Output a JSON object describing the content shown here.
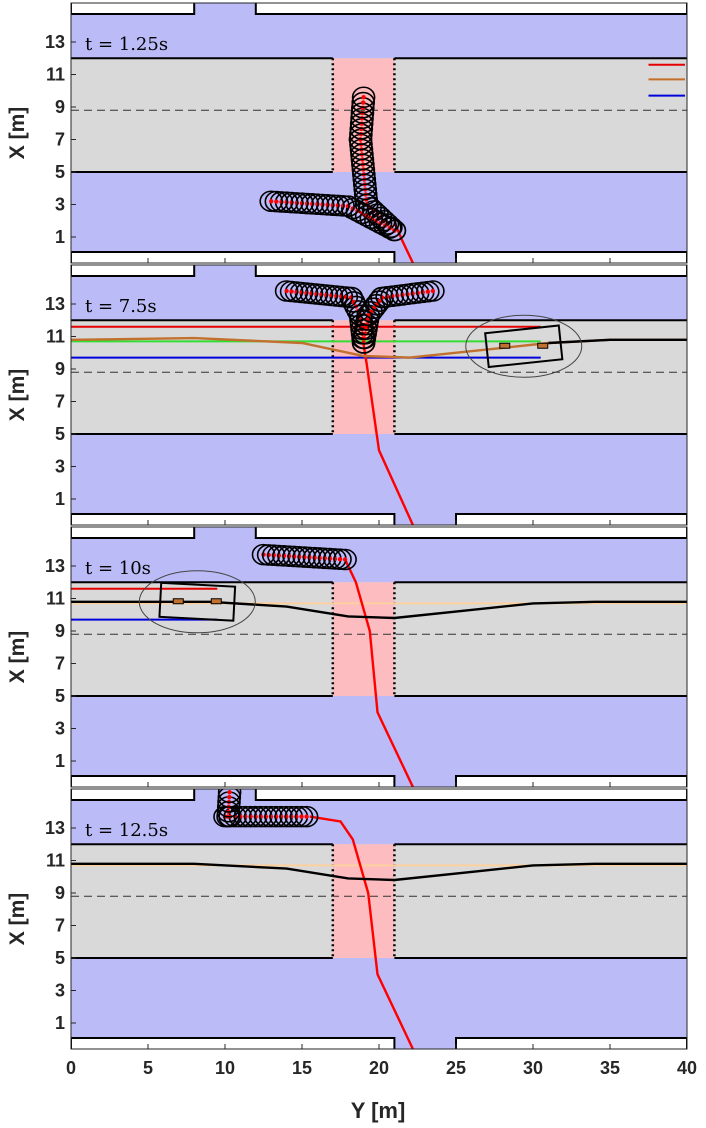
{
  "chart_data": [
    {
      "type": "line",
      "time_label": "t = 1.25s",
      "ylabel": "X [m]",
      "x_ticks": [
        0,
        5,
        10,
        15,
        20,
        25,
        30,
        35,
        40
      ],
      "y_ticks": [
        1,
        3,
        5,
        7,
        9,
        11,
        13
      ],
      "xlim": [
        0,
        40
      ],
      "ylim": [
        -0.6,
        15.4
      ],
      "ref_lines": [
        "red",
        "orange",
        "blue"
      ],
      "series": [
        {
          "values": [
            [
              22.2,
              -0.6
            ],
            [
              21.5,
              0.8
            ],
            [
              21.0,
              1.9
            ]
          ]
        },
        {
          "values": [
            [
              21.0,
              1.4
            ],
            [
              19.2,
              3.0
            ],
            [
              18.8,
              7.0
            ],
            [
              19.0,
              9.6
            ]
          ]
        },
        {
          "values": [
            [
              21.0,
              1.4
            ],
            [
              18.0,
              2.9
            ],
            [
              13.0,
              3.2
            ]
          ]
        }
      ]
    },
    {
      "type": "line",
      "time_label": "t = 7.5s",
      "ylabel": "X [m]",
      "x_ticks": [
        0,
        5,
        10,
        15,
        20,
        25,
        30,
        35,
        40
      ],
      "y_ticks": [
        1,
        3,
        5,
        7,
        9,
        11,
        13
      ],
      "xlim": [
        0,
        40
      ],
      "ylim": [
        -0.6,
        15.4
      ],
      "ref_lines": [
        "red",
        "green",
        "blue"
      ],
      "series": [
        {
          "values": [
            [
              22.2,
              -0.6
            ],
            [
              20.0,
              4.0
            ],
            [
              19.2,
              9.3
            ],
            [
              19.0,
              10.5
            ]
          ]
        },
        {
          "values": [
            [
              0,
              10.8
            ],
            [
              8,
              10.9
            ],
            [
              15,
              10.6
            ],
            [
              19,
              9.8
            ],
            [
              22,
              9.7
            ],
            [
              28,
              10.3
            ],
            [
              31,
              10.6
            ],
            [
              35,
              10.8
            ],
            [
              40,
              10.8
            ]
          ]
        },
        {
          "values": [
            [
              19.0,
              10.6
            ],
            [
              18.8,
              12.3
            ],
            [
              18.2,
              13.4
            ],
            [
              14.0,
              13.8
            ]
          ]
        },
        {
          "values": [
            [
              19.0,
              10.6
            ],
            [
              19.3,
              12.3
            ],
            [
              20.2,
              13.4
            ],
            [
              23.5,
              13.8
            ]
          ]
        }
      ]
    },
    {
      "type": "line",
      "time_label": "t = 10s",
      "ylabel": "X [m]",
      "x_ticks": [
        0,
        5,
        10,
        15,
        20,
        25,
        30,
        35,
        40
      ],
      "y_ticks": [
        1,
        3,
        5,
        7,
        9,
        11,
        13
      ],
      "xlim": [
        0,
        40
      ],
      "ylim": [
        -0.6,
        15.4
      ],
      "ref_lines": [
        "red",
        "orange",
        "blue"
      ],
      "series": [
        {
          "values": [
            [
              22.2,
              -0.6
            ],
            [
              19.9,
              4.0
            ],
            [
              19.4,
              9.0
            ],
            [
              18.5,
              12.0
            ],
            [
              17.8,
              13.4
            ]
          ]
        },
        {
          "values": [
            [
              0,
              10.8
            ],
            [
              9,
              10.8
            ],
            [
              14,
              10.5
            ],
            [
              18,
              9.9
            ],
            [
              21,
              9.8
            ],
            [
              26,
              10.3
            ],
            [
              30,
              10.7
            ],
            [
              34,
              10.8
            ],
            [
              40,
              10.8
            ]
          ]
        },
        {
          "values": [
            [
              12.5,
              13.7
            ],
            [
              17.8,
              13.4
            ]
          ]
        }
      ]
    },
    {
      "type": "line",
      "time_label": "t = 12.5s",
      "ylabel": "X [m]",
      "xlabel": "Y [m]",
      "x_ticks": [
        0,
        5,
        10,
        15,
        20,
        25,
        30,
        35,
        40
      ],
      "y_ticks": [
        1,
        3,
        5,
        7,
        9,
        11,
        13
      ],
      "xlim": [
        0,
        40
      ],
      "ylim": [
        -0.6,
        15.4
      ],
      "ref_lines": [
        "orange"
      ],
      "series": [
        {
          "values": [
            [
              22.2,
              -0.6
            ],
            [
              19.9,
              4.0
            ],
            [
              19.3,
              9.0
            ],
            [
              18.3,
              12.3
            ],
            [
              17.5,
              13.4
            ],
            [
              15.5,
              13.7
            ]
          ]
        },
        {
          "values": [
            [
              0,
              10.8
            ],
            [
              8,
              10.8
            ],
            [
              14,
              10.5
            ],
            [
              18,
              9.9
            ],
            [
              21,
              9.8
            ],
            [
              26,
              10.3
            ],
            [
              30,
              10.7
            ],
            [
              34,
              10.8
            ],
            [
              40,
              10.8
            ]
          ]
        },
        {
          "values": [
            [
              10.0,
              13.7
            ],
            [
              15.3,
              13.7
            ]
          ]
        },
        {
          "values": [
            [
              10.2,
              13.7
            ],
            [
              10.3,
              15.2
            ]
          ]
        }
      ]
    }
  ],
  "colors": {
    "sidewalk": "#bbbbf8",
    "road": "#d9d9d9",
    "crosswalk": "#fdbcbf",
    "pedestrian": "#ff0000",
    "vehicle": "#000000",
    "ref_red": "#e60000",
    "ref_orange": "#fdd0a0",
    "ref_brown": "#c2702d",
    "ref_green": "#33dd33",
    "ref_blue": "#0000dd"
  }
}
